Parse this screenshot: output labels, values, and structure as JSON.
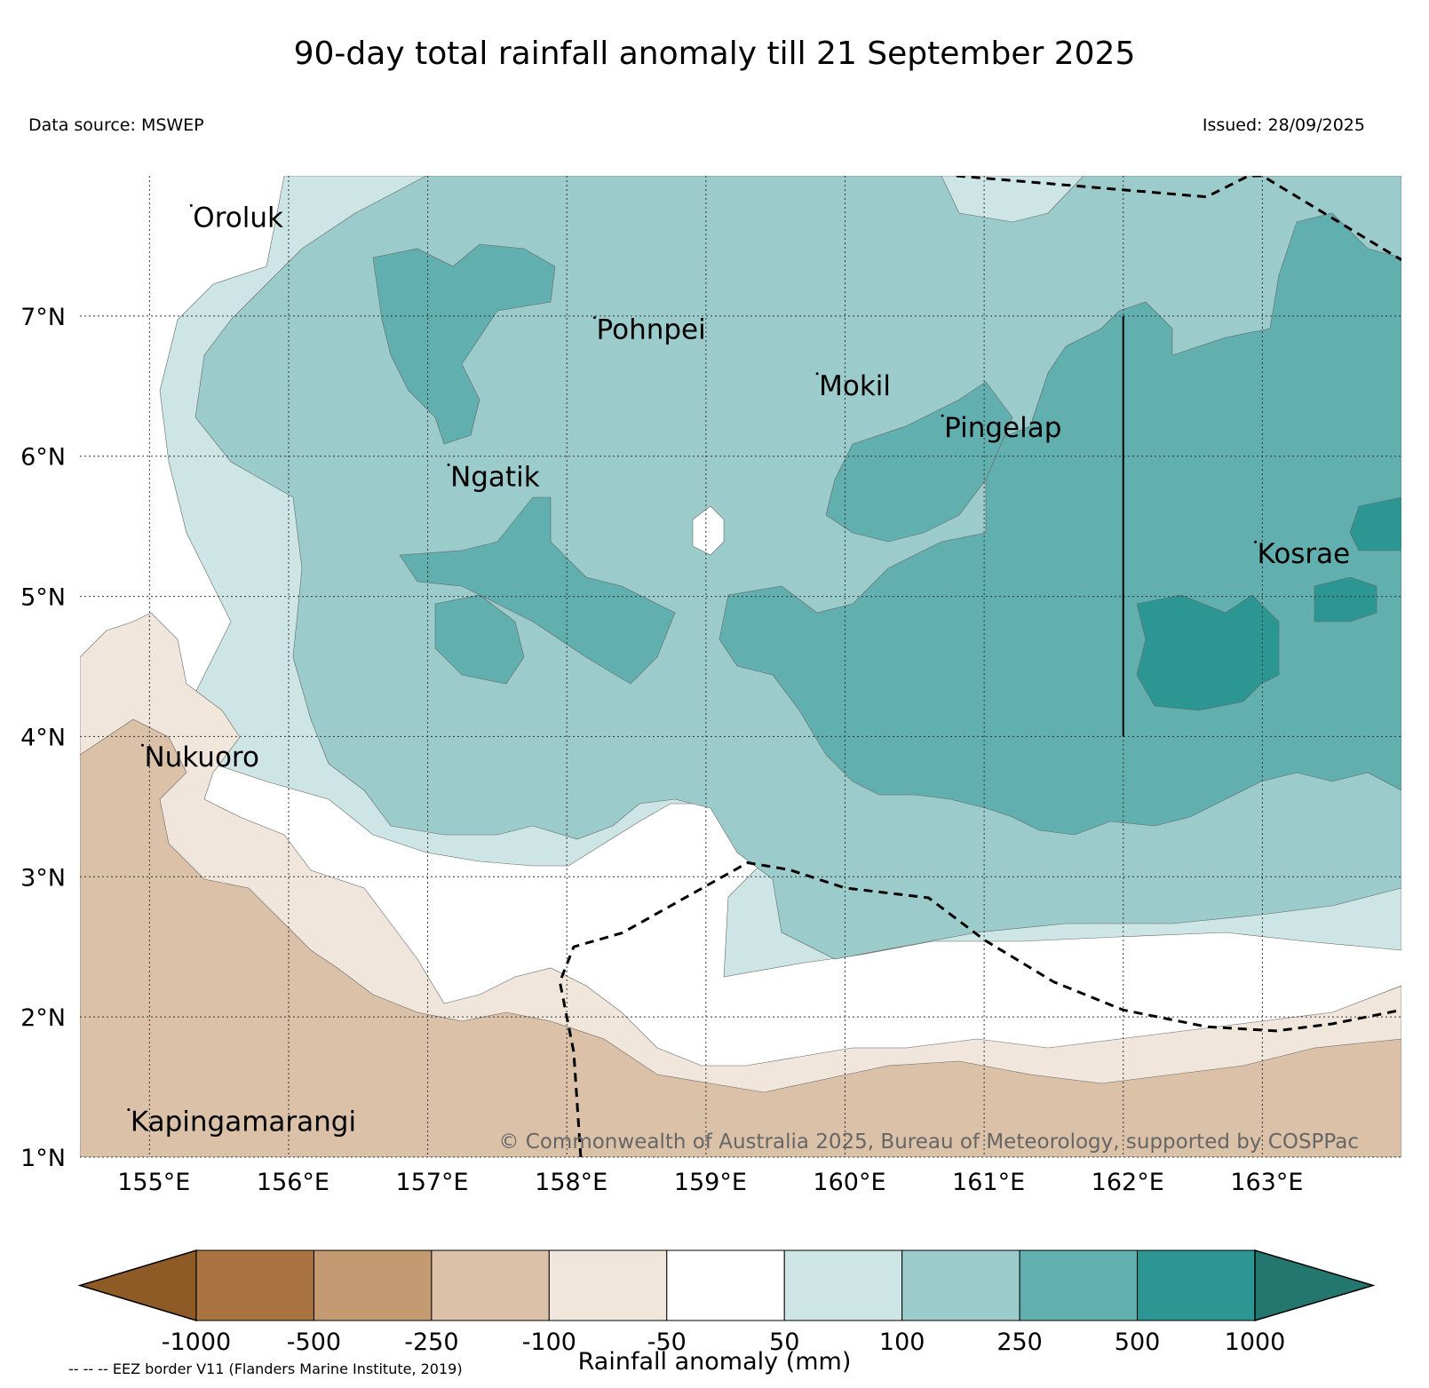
{
  "title": "90-day total rainfall anomaly till 21 September 2025",
  "data_source": "Data source: MSWEP",
  "issued": "Issued: 28/09/2025",
  "copyright": "© Commonwealth of Australia 2025, Bureau of Meteorology, supported by COSPPac",
  "eez_note": "-- -- -- EEZ border V11 (Flanders Marine Institute, 2019)",
  "colors": {
    "extend_low": "#8e5a26",
    "extend_high": "#23776f"
  },
  "chart_data": {
    "type": "heatmap",
    "projection": "PlateCarree",
    "lon_range": [
      154.5,
      164.0
    ],
    "lat_range": [
      1.0,
      8.0
    ],
    "lon_ticks": [
      {
        "value": 155,
        "label": "155°E"
      },
      {
        "value": 156,
        "label": "156°E"
      },
      {
        "value": 157,
        "label": "157°E"
      },
      {
        "value": 158,
        "label": "158°E"
      },
      {
        "value": 159,
        "label": "159°E"
      },
      {
        "value": 160,
        "label": "160°E"
      },
      {
        "value": 161,
        "label": "161°E"
      },
      {
        "value": 162,
        "label": "162°E"
      },
      {
        "value": 163,
        "label": "163°E"
      }
    ],
    "lat_ticks": [
      {
        "value": 7,
        "label": "7°N"
      },
      {
        "value": 6,
        "label": "6°N"
      },
      {
        "value": 5,
        "label": "5°N"
      },
      {
        "value": 4,
        "label": "4°N"
      },
      {
        "value": 3,
        "label": "3°N"
      },
      {
        "value": 2,
        "label": "2°N"
      },
      {
        "value": 1,
        "label": "1°N"
      }
    ],
    "islands": [
      {
        "name": "Oroluk",
        "lon": 155.3,
        "lat": 7.7
      },
      {
        "name": "Pohnpei",
        "lon": 158.2,
        "lat": 6.9
      },
      {
        "name": "Mokil",
        "lon": 159.8,
        "lat": 6.5
      },
      {
        "name": "Pingelap",
        "lon": 160.7,
        "lat": 6.2
      },
      {
        "name": "Ngatik",
        "lon": 157.15,
        "lat": 5.85
      },
      {
        "name": "Kosrae",
        "lon": 162.95,
        "lat": 5.3
      },
      {
        "name": "Nukuoro",
        "lon": 154.95,
        "lat": 3.85
      },
      {
        "name": "Kapingamarangi",
        "lon": 154.85,
        "lat": 1.25
      }
    ],
    "colorbar": {
      "label": "Rainfall anomaly (mm)",
      "ticks": [
        "-1000",
        "-500",
        "-250",
        "-100",
        "-50",
        "50",
        "100",
        "250",
        "500",
        "1000"
      ],
      "colors": [
        "#a87340",
        "#c39a71",
        "#dbc1a7",
        "#f1e6dc",
        "#ffffff",
        "#cde5e4",
        "#9bcbcb",
        "#62afaf",
        "#2c9692"
      ],
      "extend": "both"
    },
    "eez_borders": [
      [
        [
          160.8,
          8.0
        ],
        [
          162.6,
          7.85
        ],
        [
          162.9,
          8.0
        ],
        [
          163.0,
          8.0
        ],
        [
          164.0,
          7.4
        ]
      ],
      [
        [
          158.1,
          1.0
        ],
        [
          158.05,
          1.75
        ],
        [
          157.95,
          2.25
        ],
        [
          158.05,
          2.5
        ],
        [
          158.4,
          2.6
        ],
        [
          159.3,
          3.1
        ],
        [
          159.6,
          3.05
        ],
        [
          160.0,
          2.92
        ],
        [
          160.6,
          2.85
        ],
        [
          161.0,
          2.55
        ],
        [
          161.5,
          2.25
        ],
        [
          162.0,
          2.05
        ],
        [
          162.6,
          1.93
        ],
        [
          163.1,
          1.9
        ],
        [
          163.5,
          1.95
        ],
        [
          164.0,
          2.05
        ]
      ]
    ],
    "boundary_line": [
      [
        162.0,
        7.0
      ],
      [
        162.0,
        4.0
      ]
    ],
    "rainfall_zones_mm": {
      "north_central": "100 to 250",
      "east_near_kosrae": "250 to 1000",
      "southwest_near_nukuoro_kapingamarangi": "-250 to -50",
      "equatorial_band_2N_to_3N": "-50 to 50"
    }
  }
}
